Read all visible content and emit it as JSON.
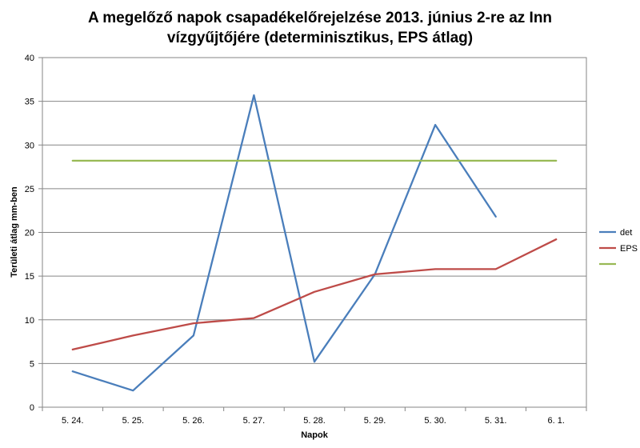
{
  "chart_data": {
    "type": "line",
    "title_lines": [
      "A megelőző napok csapadékelőrejelzése 2013. június 2-re az Inn",
      "vízgyűjtőjére (determinisztikus, EPS átlag)"
    ],
    "xlabel": "Napok",
    "ylabel": "Területi átlag mm-ben",
    "categories": [
      "5. 24.",
      "5. 25.",
      "5. 26.",
      "5. 27.",
      "5. 28.",
      "5. 29.",
      "5. 30.",
      "5. 31.",
      "6. 1."
    ],
    "ylim": [
      0,
      40
    ],
    "yticks": [
      0,
      5,
      10,
      15,
      20,
      25,
      30,
      35,
      40
    ],
    "grid": true,
    "legend_position": "right",
    "series": [
      {
        "name": "det",
        "color": "#4a7ebb",
        "values": [
          4.1,
          1.9,
          8.2,
          35.7,
          5.2,
          15.2,
          32.3,
          21.8,
          null
        ]
      },
      {
        "name": "EPS",
        "color": "#be4b48",
        "values": [
          6.6,
          8.2,
          9.6,
          10.2,
          13.2,
          15.2,
          15.8,
          15.8,
          19.2
        ]
      },
      {
        "name": "",
        "color": "#98b954",
        "values": [
          28.2,
          28.2,
          28.2,
          28.2,
          28.2,
          28.2,
          28.2,
          28.2,
          28.2
        ]
      }
    ]
  }
}
